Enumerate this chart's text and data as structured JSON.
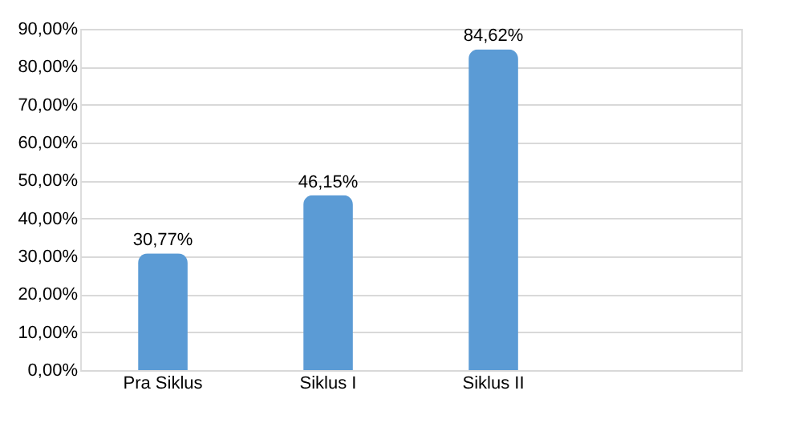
{
  "chart_data": {
    "type": "bar",
    "categories": [
      "Pra Siklus",
      "Siklus I",
      "Siklus II",
      null
    ],
    "values": [
      30.77,
      46.15,
      84.62,
      null
    ],
    "value_labels": [
      "30,77%",
      "46,15%",
      "84,62%",
      null
    ],
    "color": "#5b9bd5",
    "ylim": [
      0,
      90
    ],
    "yticks": [
      {
        "value": 0,
        "label": "0,00%"
      },
      {
        "value": 10,
        "label": "10,00%"
      },
      {
        "value": 20,
        "label": "20,00%"
      },
      {
        "value": 30,
        "label": "30,00%"
      },
      {
        "value": 40,
        "label": "40,00%"
      },
      {
        "value": 50,
        "label": "50,00%"
      },
      {
        "value": 60,
        "label": "60,00%"
      },
      {
        "value": 70,
        "label": "70,00%"
      },
      {
        "value": 80,
        "label": "80,00%"
      },
      {
        "value": 90,
        "label": "90,00%"
      }
    ],
    "grid": "y"
  }
}
